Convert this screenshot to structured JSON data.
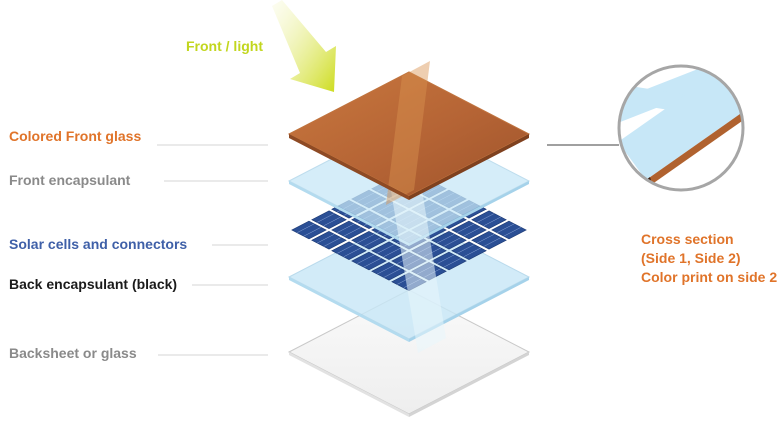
{
  "light_label": "Front / light",
  "layers": [
    {
      "key": "front_glass",
      "label": "Colored Front glass"
    },
    {
      "key": "front_encapsulant",
      "label": "Front encapsulant"
    },
    {
      "key": "solar_cells",
      "label": "Solar cells and connectors"
    },
    {
      "key": "back_encapsulant",
      "label": "Back encapsulant (black)"
    },
    {
      "key": "backsheet",
      "label": "Backsheet or glass"
    }
  ],
  "cross_section": {
    "line1": "Cross section",
    "line2": "(Side 1, Side 2)",
    "line3": "Color print on side 2"
  },
  "colors": {
    "orange": "#e0742a",
    "gray_text": "#8a8a8a",
    "blue_text": "#3f60a8",
    "black_text": "#1b1b1b",
    "light_yellow": "#c2d61e",
    "glass_brown": "#b8693a",
    "encapsulant_blue": "#c7e7f7",
    "cell_blue": "#2b4f95",
    "backsheet": "#f4f4f4"
  }
}
